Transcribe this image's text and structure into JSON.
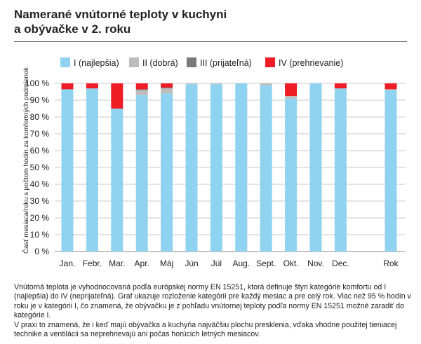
{
  "title_line1": "Namerané vnútorné teploty v kuchyni",
  "title_line2": "a obývačke v 2. roku",
  "caption": [
    "Vnútorná teplota je vyhodnocovaná podľa európskej normy EN 15251, ktorá definuje štyri kategórie komfortu od I (najlepšia) do IV (neprijateľná). Graf ukazuje rozloženie kategórií pre každý mesiac a pre celý rok. Viac než 95 % hodín v roku je v kategórii I, čo znamená, že obývačku je z pohľadu vnútornej teploty podľa normy EN 15251 možné zaradiť do kategórie I.",
    "V praxi to znamená, že i keď majú obývačka a kuchyňa najväčšiu plochu presklenia, vďaka vhodne použitej tieniacej technike a ventilácii sa neprehrievajú ani počas horúcich letných mesiacov."
  ],
  "chart_data": {
    "type": "bar",
    "stacked": true,
    "ylabel": "Časť mesiaca/roku s počtom hodín za komfortných podmienok",
    "ylim": [
      0,
      100
    ],
    "yticks": [
      0,
      10,
      20,
      30,
      40,
      50,
      60,
      70,
      80,
      90,
      100
    ],
    "ytick_labels": [
      "0 %",
      "10 %",
      "20 %",
      "30 %",
      "40 %",
      "50 %",
      "60 %",
      "70 %",
      "80 %",
      "90 %",
      "100 %"
    ],
    "grid": true,
    "legend_position": "top",
    "categories": [
      "Jan.",
      "Febr.",
      "Mar.",
      "Apr.",
      "Máj",
      "Jún",
      "Júl",
      "Aug.",
      "Sept.",
      "Okt.",
      "Nov.",
      "Dec.",
      "Rok"
    ],
    "series": [
      {
        "name": "I (najlepšia)",
        "color": "#8fd3f0",
        "values": [
          96.5,
          97,
          85,
          93,
          94,
          99.5,
          99.5,
          100,
          99,
          91,
          100,
          97,
          96
        ]
      },
      {
        "name": "II (dobrá)",
        "color": "#bdbdbd",
        "values": [
          0,
          0,
          0,
          3,
          3,
          0.5,
          0.5,
          0,
          1,
          1.5,
          0,
          0,
          0.5
        ]
      },
      {
        "name": "III (prijateľná)",
        "color": "#7a7a7a",
        "values": [
          0,
          0,
          0,
          0.5,
          0.5,
          0,
          0,
          0,
          0,
          0,
          0,
          0,
          0
        ]
      },
      {
        "name": "IV (prehrievanie)",
        "color": "#ee1c25",
        "values": [
          3.5,
          3,
          15,
          3.5,
          2.5,
          0,
          0,
          0,
          0,
          7.5,
          0,
          3,
          3.5
        ]
      }
    ]
  }
}
